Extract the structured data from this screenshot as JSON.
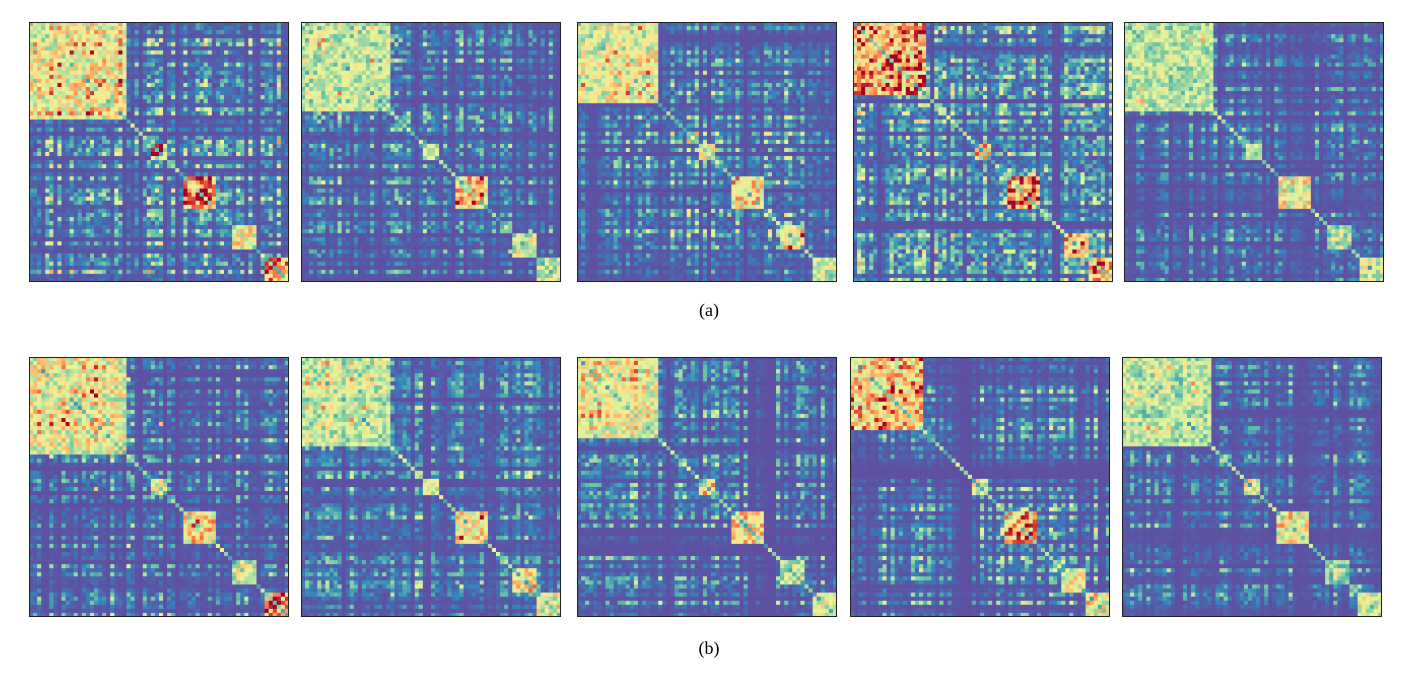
{
  "figure": {
    "captions": {
      "a": "(a)",
      "b": "(b)"
    }
  },
  "colors": {
    "low": "#5b4d9e",
    "colormap": [
      "#5e4fa2",
      "#3288bd",
      "#66c2a5",
      "#abdda4",
      "#e6f598",
      "#fee08b",
      "#fdae61",
      "#f46d43",
      "#a50026"
    ]
  },
  "chart_data": [
    {
      "type": "heatmap",
      "row": "a",
      "index": 1,
      "size": 64,
      "seed": 11,
      "blocks": [
        [
          0,
          24,
          0.55
        ],
        [
          30,
          34,
          0.5
        ],
        [
          38,
          46,
          0.7
        ],
        [
          50,
          56,
          0.55
        ],
        [
          58,
          64,
          0.75
        ]
      ],
      "intensity": 0.62
    },
    {
      "type": "heatmap",
      "row": "a",
      "index": 2,
      "size": 64,
      "seed": 23,
      "blocks": [
        [
          0,
          22,
          0.4
        ],
        [
          30,
          34,
          0.45
        ],
        [
          38,
          46,
          0.6
        ],
        [
          52,
          58,
          0.45
        ],
        [
          58,
          64,
          0.55
        ]
      ],
      "intensity": 0.45
    },
    {
      "type": "heatmap",
      "row": "a",
      "index": 3,
      "size": 64,
      "seed": 37,
      "blocks": [
        [
          0,
          20,
          0.5
        ],
        [
          30,
          34,
          0.55
        ],
        [
          38,
          46,
          0.65
        ],
        [
          50,
          56,
          0.45
        ],
        [
          58,
          64,
          0.5
        ]
      ],
      "intensity": 0.5
    },
    {
      "type": "heatmap",
      "row": "a",
      "index": 4,
      "size": 64,
      "seed": 41,
      "blocks": [
        [
          0,
          18,
          0.7
        ],
        [
          30,
          34,
          0.6
        ],
        [
          38,
          46,
          0.75
        ],
        [
          52,
          58,
          0.55
        ],
        [
          58,
          64,
          0.6
        ]
      ],
      "intensity": 0.55
    },
    {
      "type": "heatmap",
      "row": "a",
      "index": 5,
      "size": 64,
      "seed": 53,
      "blocks": [
        [
          0,
          22,
          0.4
        ],
        [
          30,
          34,
          0.45
        ],
        [
          38,
          46,
          0.6
        ],
        [
          50,
          56,
          0.35
        ],
        [
          58,
          64,
          0.45
        ]
      ],
      "intensity": 0.42
    },
    {
      "type": "heatmap",
      "row": "b",
      "index": 1,
      "size": 64,
      "seed": 67,
      "blocks": [
        [
          0,
          24,
          0.55
        ],
        [
          30,
          34,
          0.5
        ],
        [
          38,
          46,
          0.7
        ],
        [
          50,
          56,
          0.5
        ],
        [
          58,
          64,
          0.75
        ]
      ],
      "intensity": 0.5
    },
    {
      "type": "heatmap",
      "row": "b",
      "index": 2,
      "size": 64,
      "seed": 71,
      "blocks": [
        [
          0,
          22,
          0.4
        ],
        [
          30,
          34,
          0.45
        ],
        [
          38,
          46,
          0.6
        ],
        [
          52,
          58,
          0.45
        ],
        [
          58,
          64,
          0.55
        ]
      ],
      "intensity": 0.38
    },
    {
      "type": "heatmap",
      "row": "b",
      "index": 3,
      "size": 64,
      "seed": 83,
      "blocks": [
        [
          0,
          20,
          0.5
        ],
        [
          30,
          34,
          0.55
        ],
        [
          38,
          46,
          0.65
        ],
        [
          50,
          56,
          0.45
        ],
        [
          58,
          64,
          0.5
        ]
      ],
      "intensity": 0.42
    },
    {
      "type": "heatmap",
      "row": "b",
      "index": 4,
      "size": 64,
      "seed": 97,
      "blocks": [
        [
          0,
          18,
          0.7
        ],
        [
          30,
          34,
          0.6
        ],
        [
          38,
          46,
          0.75
        ],
        [
          52,
          58,
          0.55
        ],
        [
          58,
          64,
          0.6
        ]
      ],
      "intensity": 0.5
    },
    {
      "type": "heatmap",
      "row": "b",
      "index": 5,
      "size": 64,
      "seed": 101,
      "blocks": [
        [
          0,
          22,
          0.4
        ],
        [
          30,
          34,
          0.45
        ],
        [
          38,
          46,
          0.6
        ],
        [
          50,
          56,
          0.35
        ],
        [
          58,
          64,
          0.45
        ]
      ],
      "intensity": 0.35
    }
  ]
}
